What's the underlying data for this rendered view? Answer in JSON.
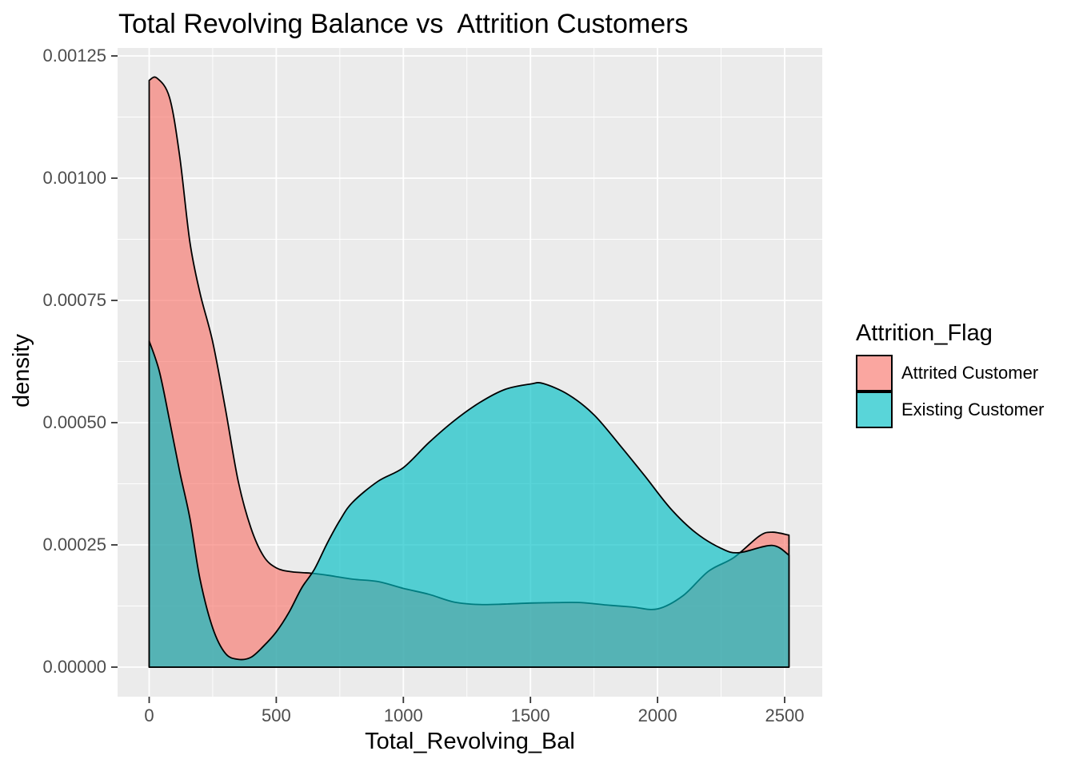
{
  "title": "Total Revolving Balance vs  Attrition Customers",
  "legend": {
    "title": "Attrition_Flag",
    "items": [
      {
        "label": "Attrited Customer",
        "color": "#F8766D"
      },
      {
        "label": "Existing Customer",
        "color": "#00BFC4"
      }
    ]
  },
  "chart_data": {
    "type": "area",
    "subtype": "overlaid-density",
    "title": "Total Revolving Balance vs  Attrition Customers",
    "xlabel": "Total_Revolving_Bal",
    "ylabel": "density",
    "grid": "on",
    "legend_position": "right",
    "x_axis": {
      "range": [
        0,
        2517
      ],
      "ticks": [
        0,
        500,
        1000,
        1500,
        2000,
        2500
      ],
      "tick_labels": [
        "0",
        "500",
        "1000",
        "1500",
        "2000",
        "2500"
      ],
      "minor_ticks": [
        250,
        750,
        1250,
        1750,
        2250
      ]
    },
    "y_axis": {
      "range": [
        0,
        0.001266
      ],
      "ticks": [
        0,
        0.00025,
        0.0005,
        0.00075,
        0.001,
        0.00125
      ],
      "tick_labels": [
        "0.00000",
        "0.00025",
        "0.00050",
        "0.00075",
        "0.00100",
        "0.00125"
      ],
      "minor_ticks": [
        0.000125,
        0.000375,
        0.000625,
        0.000875,
        0.001125
      ]
    },
    "series": [
      {
        "name": "Attrited Customer",
        "fill": "#F8766D",
        "points": [
          [
            0,
            0.0012
          ],
          [
            30,
            0.001205
          ],
          [
            80,
            0.001165
          ],
          [
            120,
            0.001045
          ],
          [
            160,
            0.00087
          ],
          [
            200,
            0.000765
          ],
          [
            250,
            0.000665
          ],
          [
            300,
            0.000528
          ],
          [
            350,
            0.000381
          ],
          [
            400,
            0.000285
          ],
          [
            450,
            0.000227
          ],
          [
            500,
            0.000203
          ],
          [
            560,
            0.000195
          ],
          [
            640,
            0.000192
          ],
          [
            700,
            0.000188
          ],
          [
            800,
            0.00018
          ],
          [
            900,
            0.000175
          ],
          [
            1000,
            0.000161
          ],
          [
            1100,
            0.000149
          ],
          [
            1200,
            0.000133
          ],
          [
            1300,
            0.000128
          ],
          [
            1400,
            0.000129
          ],
          [
            1500,
            0.000131
          ],
          [
            1600,
            0.000132
          ],
          [
            1700,
            0.000132
          ],
          [
            1800,
            0.000127
          ],
          [
            1900,
            0.000123
          ],
          [
            2000,
            0.000119
          ],
          [
            2100,
            0.000146
          ],
          [
            2200,
            0.000196
          ],
          [
            2300,
            0.000224
          ],
          [
            2400,
            0.000268
          ],
          [
            2450,
            0.000276
          ],
          [
            2517,
            0.00027
          ]
        ]
      },
      {
        "name": "Existing Customer",
        "fill": "#00BFC4",
        "points": [
          [
            0,
            0.000667
          ],
          [
            40,
            0.000605
          ],
          [
            80,
            0.000505
          ],
          [
            120,
            0.0004
          ],
          [
            160,
            0.000305
          ],
          [
            200,
            0.00018
          ],
          [
            250,
            8e-05
          ],
          [
            300,
            2.8e-05
          ],
          [
            350,
            1.6e-05
          ],
          [
            400,
            2e-05
          ],
          [
            450,
            4.3e-05
          ],
          [
            500,
            7.2e-05
          ],
          [
            550,
            0.000112
          ],
          [
            600,
            0.000162
          ],
          [
            650,
            0.0002
          ],
          [
            700,
            0.000253
          ],
          [
            750,
            0.0003
          ],
          [
            800,
            0.000337
          ],
          [
            900,
            0.00038
          ],
          [
            1000,
            0.000408
          ],
          [
            1100,
            0.000459
          ],
          [
            1200,
            0.000504
          ],
          [
            1300,
            0.000541
          ],
          [
            1400,
            0.000568
          ],
          [
            1500,
            0.000579
          ],
          [
            1550,
            0.00058
          ],
          [
            1650,
            0.000557
          ],
          [
            1750,
            0.000516
          ],
          [
            1850,
            0.000455
          ],
          [
            1950,
            0.000391
          ],
          [
            2050,
            0.000325
          ],
          [
            2150,
            0.000275
          ],
          [
            2250,
            0.000243
          ],
          [
            2320,
            0.000234
          ],
          [
            2450,
            0.000249
          ],
          [
            2517,
            0.000229
          ]
        ]
      }
    ],
    "style": {
      "fill_opacity": 0.65,
      "outline_color": "#000000",
      "panel_background": "#EBEBEB",
      "grid_color": "#FFFFFF",
      "tick_label_color": "#4D4D4D",
      "tick_mark_color": "#333333",
      "title_color": "#000000"
    }
  }
}
